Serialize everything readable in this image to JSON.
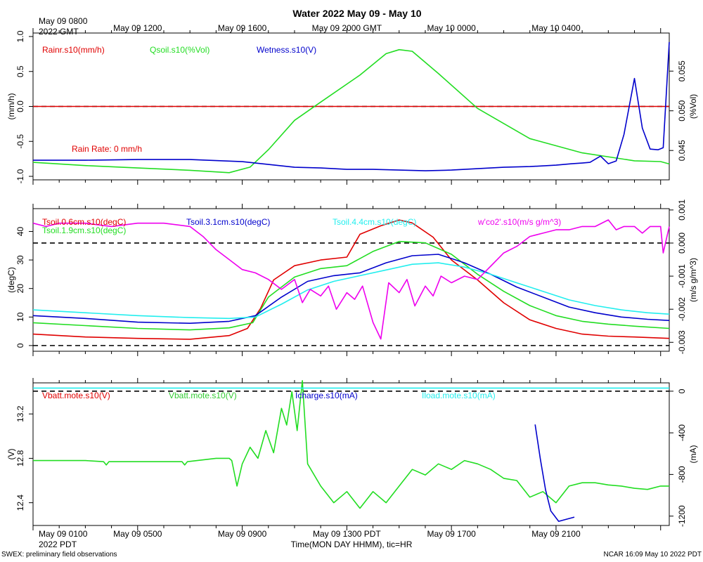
{
  "title": "Water 2022 May 09 - May 10",
  "top_axis": {
    "start_label": [
      "May 09 0800",
      "2022 GMT"
    ],
    "labels": [
      "May 09 1200",
      "May 09 1600",
      "May 09 2000 GMT",
      "May 10 0000",
      "May 10 0400"
    ]
  },
  "bottom_axis": {
    "start_label": [
      "May 09 0100",
      "2022 PDT"
    ],
    "labels": [
      "May 09 0500",
      "May 09 0900",
      "May 09 1300 PDT",
      "May 09 1700",
      "May 09 2100"
    ],
    "title": "Time(MON DAY HHMM), tic=HR"
  },
  "footer_left": "SWEX: preliminary field observations",
  "footer_right": "NCAR 16:09 May 10 2022 PDT",
  "colors": {
    "red": "#e00000",
    "green": "#22dd22",
    "blue": "#0000cc",
    "cyan": "#22eeee",
    "magenta": "#ee00ee",
    "darkgreen": "#33cc33"
  },
  "chart_data": [
    {
      "type": "line",
      "panel": "water",
      "x_range_hours_pdt": [
        0,
        24.33
      ],
      "left_axis": {
        "label": "(mm/h)",
        "ylim": [
          -1.05,
          1.05
        ],
        "ticks": [
          -1.0,
          -0.5,
          0.0,
          0.5,
          1.0
        ],
        "tick_labels": [
          "-1.0",
          "-0.5",
          "0.0",
          "0.5",
          "1.0"
        ]
      },
      "right_axis": {
        "label": "(%Vol)",
        "ylim": [
          0.0413,
          0.0598
        ],
        "ticks": [
          0.045,
          0.05,
          0.055
        ],
        "tick_labels": [
          "0.045",
          "0.050",
          "0.055"
        ]
      },
      "legend": [
        "Rainr.s10(mm/h)",
        "Qsoil.s10(%Vol)",
        "Wetness.s10(V)"
      ],
      "annotation": "Rain Rate: 0 mm/h",
      "reference_lines": [
        {
          "axis": "left",
          "y": 0.0,
          "style": "dashed"
        }
      ],
      "series": [
        {
          "name": "Rainr.s10(mm/h)",
          "axis": "left",
          "color": "red",
          "x": [
            0,
            24.33
          ],
          "values": [
            0.0,
            0.0
          ]
        },
        {
          "name": "Qsoil.s10(%Vol)",
          "axis": "right",
          "color": "green",
          "x": [
            0,
            2,
            4,
            6,
            7.5,
            8.3,
            9.0,
            10.0,
            11.0,
            12.5,
            13.5,
            14.0,
            14.5,
            15.5,
            17.0,
            19.0,
            21.0,
            23.0,
            24.0,
            24.33
          ],
          "values": [
            0.0435,
            0.0431,
            0.0428,
            0.0425,
            0.0422,
            0.0429,
            0.0451,
            0.0488,
            0.0511,
            0.0545,
            0.0572,
            0.0577,
            0.0575,
            0.0547,
            0.0503,
            0.0465,
            0.0447,
            0.0437,
            0.0436,
            0.0433
          ]
        }
      ],
      "wetness_series": {
        "name": "Wetness.s10(V)",
        "axis": "left",
        "color": "blue",
        "x": [
          0,
          2,
          4,
          6,
          8,
          9,
          10,
          11,
          12,
          13,
          14,
          15,
          16,
          17,
          18,
          19,
          20,
          20.6,
          21.0,
          21.3,
          21.7,
          22.0,
          22.3,
          22.6,
          23.0,
          23.3,
          23.6,
          23.9,
          24.1,
          24.33
        ],
        "values": [
          -0.77,
          -0.77,
          -0.76,
          -0.76,
          -0.79,
          -0.83,
          -0.87,
          -0.88,
          -0.9,
          -0.9,
          -0.91,
          -0.92,
          -0.91,
          -0.89,
          -0.87,
          -0.86,
          -0.84,
          -0.82,
          -0.81,
          -0.8,
          -0.71,
          -0.82,
          -0.78,
          -0.4,
          0.4,
          -0.31,
          -0.61,
          -0.62,
          -0.59,
          0.92
        ]
      }
    },
    {
      "type": "line",
      "panel": "soil temperature",
      "x_range_hours_pdt": [
        0,
        24.33
      ],
      "left_axis": {
        "label": "(degC)",
        "ylim": [
          -2,
          48
        ],
        "ticks": [
          0,
          10,
          20,
          30,
          40
        ],
        "tick_labels": [
          "0",
          "10",
          "20",
          "30",
          "40"
        ]
      },
      "right_axis": {
        "label": "(m/s g/m^3)",
        "ylim": [
          -0.00327,
          0.00104
        ],
        "ticks": [
          -0.003,
          -0.002,
          -0.001,
          0.0,
          0.001
        ],
        "tick_labels": [
          "-0.003",
          "-0.002",
          "-0.001",
          "0.000",
          "0.001"
        ]
      },
      "legend": [
        "Tsoil.0.6cm.s10(degC)",
        "Tsoil.1.9cm.s10(degC)",
        "Tsoil.3.1cm.s10(degC)",
        "Tsoil.4.4cm.s10(degC)",
        "w'co2'.s10(m/s g/m^3)"
      ],
      "reference_lines": [
        {
          "axis": "left",
          "y": 0,
          "style": "dashed"
        },
        {
          "axis": "right",
          "y": 0.0,
          "style": "dashed"
        }
      ],
      "series": [
        {
          "name": "Tsoil.0.6cm.s10(degC)",
          "axis": "left",
          "color": "red",
          "x": [
            0,
            2,
            4,
            6,
            7.5,
            8.2,
            8.7,
            9.2,
            10,
            11,
            12,
            12.5,
            13.3,
            14.0,
            14.5,
            15.3,
            16,
            17,
            18,
            19,
            20,
            21,
            22,
            23,
            24.33
          ],
          "values": [
            4,
            3,
            2.5,
            2.2,
            3.5,
            6,
            13,
            23,
            28,
            30,
            31,
            39,
            42,
            44,
            43,
            38,
            30,
            23,
            15,
            9,
            6,
            4,
            3.3,
            3,
            2.5
          ]
        },
        {
          "name": "Tsoil.1.9cm.s10(degC)",
          "axis": "left",
          "color": "green",
          "x": [
            0,
            2,
            4,
            6,
            7.5,
            8.4,
            9.0,
            10,
            11,
            12,
            13,
            14,
            15,
            16,
            17,
            18,
            19,
            20,
            21,
            22,
            23,
            24.33
          ],
          "values": [
            8,
            7,
            6,
            5.5,
            6.2,
            8,
            17,
            24,
            27,
            28,
            33,
            36.5,
            36,
            32,
            25,
            19,
            14,
            10.5,
            8.5,
            7.5,
            6.8,
            6
          ]
        },
        {
          "name": "Tsoil.3.1cm.s10(degC)",
          "axis": "left",
          "color": "blue",
          "x": [
            0,
            2,
            4,
            6,
            7.5,
            8.5,
            9.5,
            10.5,
            11.5,
            12.5,
            13.5,
            14.5,
            15.5,
            16.5,
            17.5,
            18.5,
            19.5,
            20.5,
            21.5,
            22.5,
            23.5,
            24.33
          ],
          "values": [
            10.5,
            9.5,
            8.2,
            7.8,
            8.5,
            10.5,
            17,
            22.5,
            24.5,
            25.5,
            29,
            31.5,
            32,
            29,
            25,
            20.5,
            17,
            13.5,
            11.5,
            10,
            9.2,
            8.8
          ]
        },
        {
          "name": "Tsoil.4.4cm.s10(degC)",
          "axis": "left",
          "color": "cyan",
          "x": [
            0,
            2,
            4,
            6,
            7.5,
            8.5,
            9.5,
            10.5,
            11.5,
            12.5,
            13.5,
            14.5,
            15.5,
            16.5,
            17.5,
            18.5,
            19.5,
            20.5,
            21.5,
            22.5,
            23.5,
            24.33
          ],
          "values": [
            12.5,
            11.5,
            10.5,
            9.8,
            9.5,
            10,
            14.5,
            19.5,
            22.5,
            24.5,
            26.5,
            28.5,
            29,
            27.5,
            25,
            22,
            19,
            16,
            14,
            12.5,
            11.5,
            11
          ]
        },
        {
          "name": "w'co2'.s10(m/s g/m^3)",
          "axis": "right",
          "color": "magenta",
          "x": [
            0,
            0.5,
            1,
            2,
            3,
            4,
            5,
            6,
            6.5,
            7.0,
            7.5,
            8.0,
            8.5,
            9.0,
            9.5,
            10.0,
            10.3,
            10.6,
            11.0,
            11.3,
            11.6,
            12.0,
            12.3,
            12.6,
            13.0,
            13.3,
            13.6,
            14.0,
            14.3,
            14.6,
            15.0,
            15.3,
            15.6,
            16.0,
            16.5,
            17.0,
            17.5,
            18.0,
            18.5,
            19.0,
            19.5,
            20.0,
            20.5,
            21.0,
            21.5,
            22.0,
            22.3,
            22.6,
            23.0,
            23.3,
            23.6,
            24.0,
            24.1,
            24.33
          ],
          "values": [
            0.0006,
            0.0005,
            0.0006,
            0.0006,
            0.0005,
            0.0006,
            0.0006,
            0.0005,
            0.0002,
            -0.0002,
            -0.0005,
            -0.0008,
            -0.0009,
            -0.0011,
            -0.0014,
            -0.0011,
            -0.0018,
            -0.0014,
            -0.0016,
            -0.0013,
            -0.002,
            -0.0015,
            -0.0017,
            -0.0013,
            -0.0024,
            -0.0029,
            -0.0012,
            -0.0015,
            -0.0011,
            -0.0019,
            -0.0013,
            -0.0016,
            -0.001,
            -0.0012,
            -0.001,
            -0.0011,
            -0.0007,
            -0.0003,
            -0.0001,
            0.0002,
            0.0003,
            0.0004,
            0.0004,
            0.0005,
            0.0005,
            0.0007,
            0.0004,
            0.0005,
            0.0005,
            0.0003,
            0.0005,
            0.0005,
            -0.0003,
            0.0005
          ]
        }
      ]
    },
    {
      "type": "line",
      "panel": "power",
      "x_range_hours_pdt": [
        0,
        24.33
      ],
      "left_axis": {
        "label": "(V)",
        "ylim": [
          12.195,
          13.48
        ],
        "ticks": [
          12.4,
          12.8,
          13.2
        ],
        "tick_labels": [
          "12.4",
          "12.8",
          "13.2"
        ]
      },
      "right_axis": {
        "label": "(mA)",
        "ylim": [
          -1290,
          80
        ],
        "ticks": [
          0,
          -400,
          -800,
          -1200
        ],
        "tick_labels": [
          "0",
          "-400",
          "-800",
          "-1200"
        ]
      },
      "legend": [
        "Vbatt.mote.s10(V)",
        "Vbatt.mote.s10(V)",
        "Icharge.s10(mA)",
        "Iload.mote.s10(mA)"
      ],
      "reference_lines": [
        {
          "axis": "right",
          "y": 0,
          "style": "dashed"
        }
      ],
      "series": [
        {
          "name": "Vbatt.mote.s10(V)",
          "axis": "left",
          "color": "green",
          "x": [
            0,
            1,
            2,
            2.7,
            2.8,
            2.9,
            4,
            5.7,
            5.8,
            5.9,
            7,
            7.5,
            7.6,
            7.8,
            8.0,
            8.3,
            8.6,
            8.9,
            9.2,
            9.5,
            9.7,
            9.9,
            10.1,
            10.3,
            10.5,
            11,
            11.5,
            12,
            12.5,
            13,
            13.5,
            14,
            14.5,
            15,
            15.5,
            16,
            16.5,
            17,
            17.5,
            18,
            18.5,
            19,
            19.5,
            20,
            20.5,
            21,
            21.5,
            22,
            22.5,
            23,
            23.5,
            24,
            24.33
          ],
          "values": [
            12.78,
            12.78,
            12.78,
            12.77,
            12.74,
            12.77,
            12.77,
            12.77,
            12.74,
            12.77,
            12.8,
            12.8,
            12.78,
            12.55,
            12.75,
            12.9,
            12.8,
            13.05,
            12.85,
            13.25,
            13.1,
            13.4,
            13.05,
            13.5,
            12.75,
            12.55,
            12.4,
            12.5,
            12.35,
            12.5,
            12.4,
            12.55,
            12.7,
            12.65,
            12.75,
            12.7,
            12.78,
            12.75,
            12.7,
            12.62,
            12.6,
            12.45,
            12.5,
            12.4,
            12.55,
            12.58,
            12.58,
            12.56,
            12.55,
            12.53,
            12.52,
            12.55,
            12.55
          ]
        },
        {
          "name": "Icharge.s10(mA)",
          "axis": "right",
          "color": "blue",
          "x": [
            19.2,
            19.4,
            19.6,
            19.8,
            20.1,
            20.4,
            20.7
          ],
          "values": [
            -320,
            -650,
            -950,
            -1150,
            -1250,
            -1230,
            -1210
          ]
        },
        {
          "name": "Iload.mote.s10(mA)",
          "axis": "right",
          "color": "cyan",
          "x": [
            0,
            24.33
          ],
          "values": [
            30,
            30
          ]
        }
      ]
    }
  ]
}
